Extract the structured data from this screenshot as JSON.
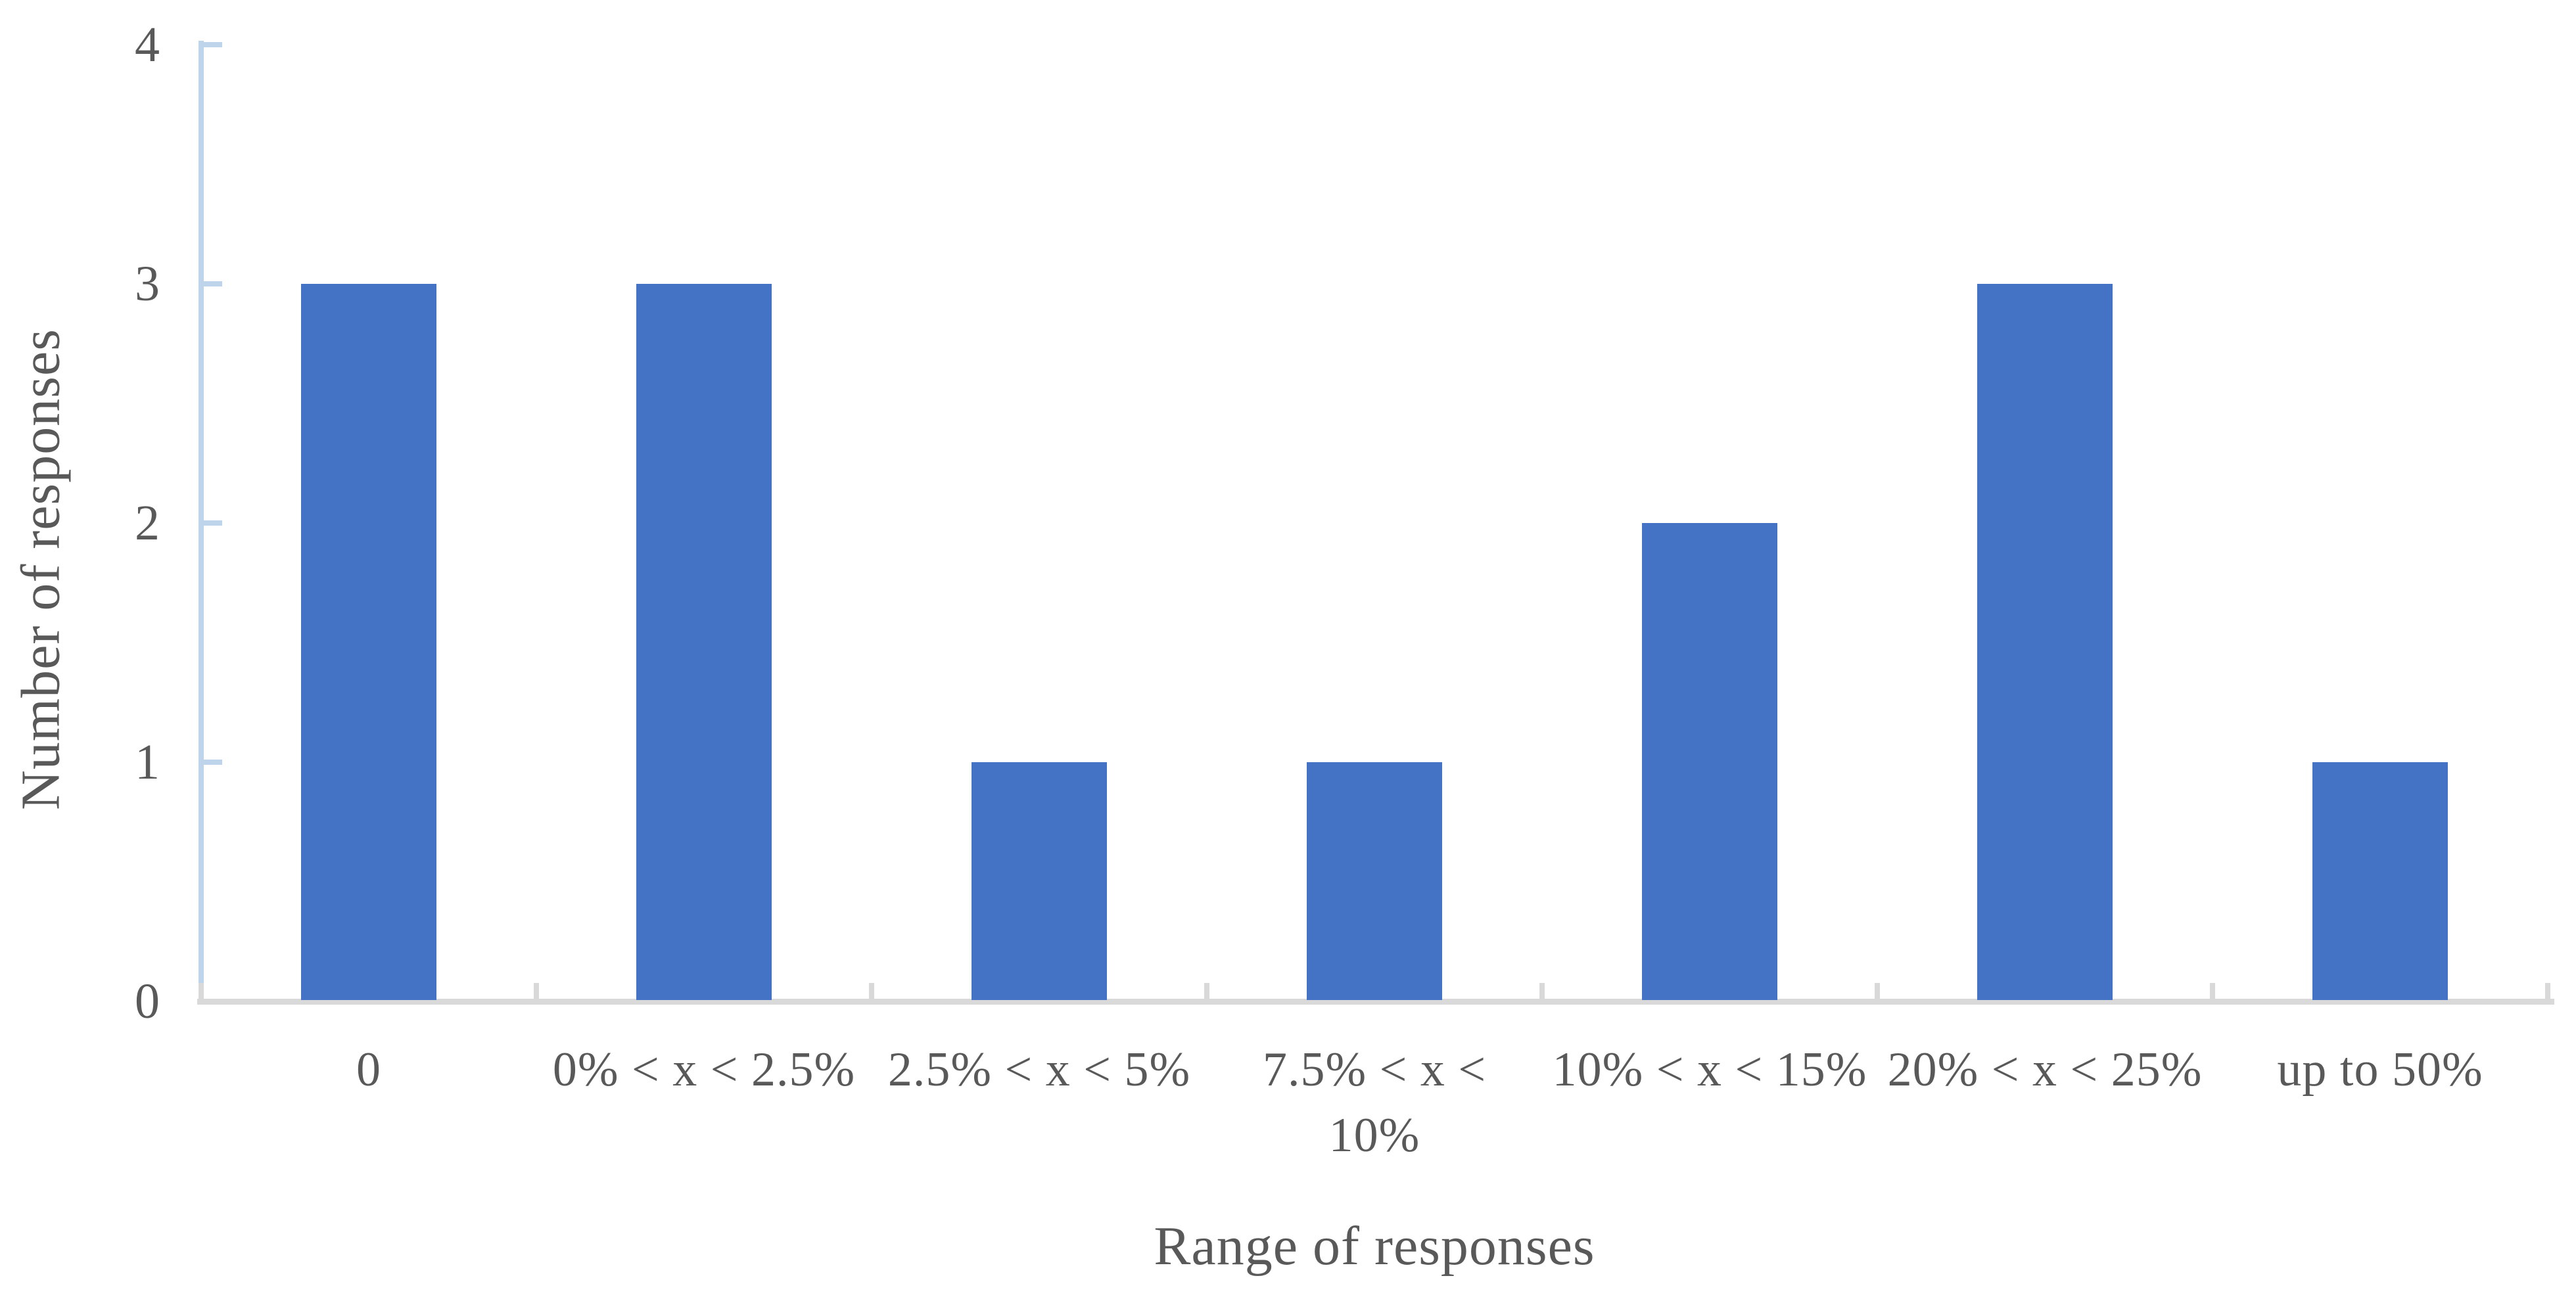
{
  "chart_data": {
    "type": "bar",
    "title": "",
    "xlabel": "Range of responses",
    "ylabel": "Number of responses",
    "categories": [
      "0",
      "0% < x < 2.5%",
      "2.5% < x < 5%",
      "7.5% < x <\n10%",
      "10% < x < 15%",
      "20% < x < 25%",
      "up to 50%"
    ],
    "values": [
      3,
      3,
      1,
      1,
      2,
      3,
      1
    ],
    "yticks": [
      0,
      1,
      2,
      3,
      4
    ],
    "ylim": [
      0,
      4
    ],
    "grid": false,
    "legend_position": "none",
    "colors": {
      "bar": "#4472C4",
      "value_axis": "#BDD4EA",
      "category_axis": "#D9D9D9",
      "text": "#595959"
    }
  }
}
